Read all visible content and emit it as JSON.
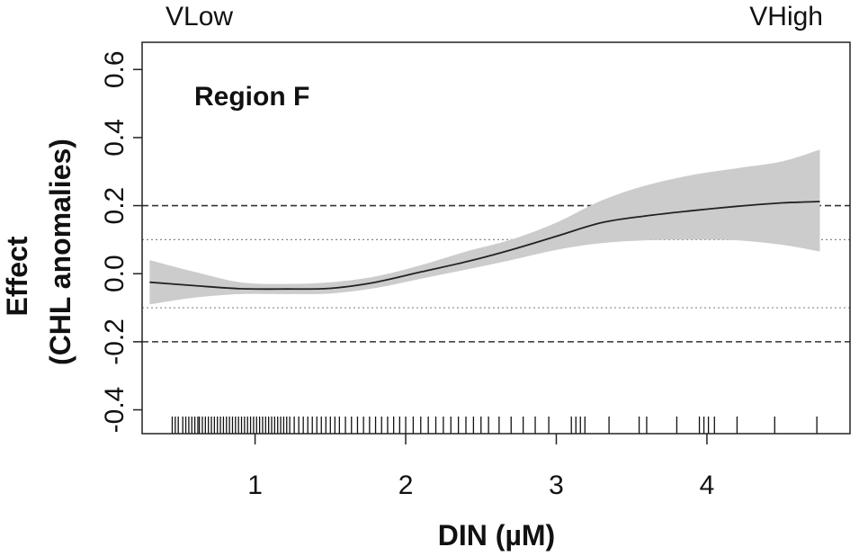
{
  "chart_data": {
    "type": "line",
    "panel_label": "Region F",
    "xlabel": "DIN (µM)",
    "ylabel_lines": [
      "Effect",
      "(CHL anomalies)"
    ],
    "corner_labels": {
      "left": "VLow",
      "right": "VHigh"
    },
    "xlim": [
      0.25,
      4.95
    ],
    "ylim": [
      -0.47,
      0.68
    ],
    "x_ticks": [
      1,
      2,
      3,
      4
    ],
    "x_tick_labels": [
      "1",
      "2",
      "3",
      "4"
    ],
    "y_ticks": [
      -0.4,
      -0.2,
      0.0,
      0.2,
      0.4,
      0.6
    ],
    "y_tick_labels": [
      "-0.4",
      "-0.2",
      "0.0",
      "0.2",
      "0.4",
      "0.6"
    ],
    "reference_lines": [
      {
        "y": 0.2,
        "style": "dashed"
      },
      {
        "y": -0.2,
        "style": "dashed"
      },
      {
        "y": 0.1,
        "style": "dotted"
      },
      {
        "y": -0.1,
        "style": "dotted"
      }
    ],
    "grid": false,
    "colors": {
      "ci_band": "#cccccc",
      "line": "#222222",
      "reference": "#333333"
    },
    "series": [
      {
        "x": [
          0.3,
          0.6,
          0.9,
          1.2,
          1.5,
          1.8,
          2.1,
          2.4,
          2.7,
          3.0,
          3.3,
          3.6,
          3.9,
          4.2,
          4.5,
          4.75
        ],
        "y": [
          -0.025,
          -0.035,
          -0.044,
          -0.045,
          -0.043,
          -0.025,
          0.005,
          0.035,
          0.07,
          0.11,
          0.15,
          0.17,
          0.185,
          0.198,
          0.208,
          0.212
        ],
        "lower": [
          -0.09,
          -0.07,
          -0.06,
          -0.06,
          -0.058,
          -0.042,
          -0.015,
          0.012,
          0.04,
          0.07,
          0.09,
          0.098,
          0.1,
          0.098,
          0.085,
          0.065
        ],
        "upper": [
          0.04,
          0.005,
          -0.025,
          -0.03,
          -0.025,
          -0.008,
          0.025,
          0.065,
          0.1,
          0.15,
          0.215,
          0.26,
          0.29,
          0.31,
          0.33,
          0.365
        ]
      }
    ],
    "rug": [
      0.45,
      0.47,
      0.49,
      0.52,
      0.54,
      0.56,
      0.58,
      0.6,
      0.62,
      0.63,
      0.65,
      0.67,
      0.69,
      0.71,
      0.73,
      0.75,
      0.77,
      0.79,
      0.81,
      0.83,
      0.85,
      0.87,
      0.89,
      0.91,
      0.93,
      0.95,
      0.97,
      0.99,
      1.01,
      1.03,
      1.05,
      1.07,
      1.09,
      1.11,
      1.13,
      1.15,
      1.17,
      1.19,
      1.21,
      1.23,
      1.26,
      1.29,
      1.32,
      1.35,
      1.38,
      1.41,
      1.44,
      1.47,
      1.5,
      1.53,
      1.56,
      1.6,
      1.64,
      1.68,
      1.72,
      1.76,
      1.8,
      1.84,
      1.88,
      1.92,
      1.96,
      2.0,
      2.05,
      2.1,
      2.15,
      2.2,
      2.25,
      2.3,
      2.35,
      2.4,
      2.45,
      2.5,
      2.55,
      2.62,
      2.7,
      2.78,
      2.86,
      2.95,
      3.1,
      3.13,
      3.16,
      3.19,
      3.35,
      3.55,
      3.6,
      3.8,
      3.95,
      3.98,
      4.01,
      4.05,
      4.2,
      4.45,
      4.73
    ]
  }
}
